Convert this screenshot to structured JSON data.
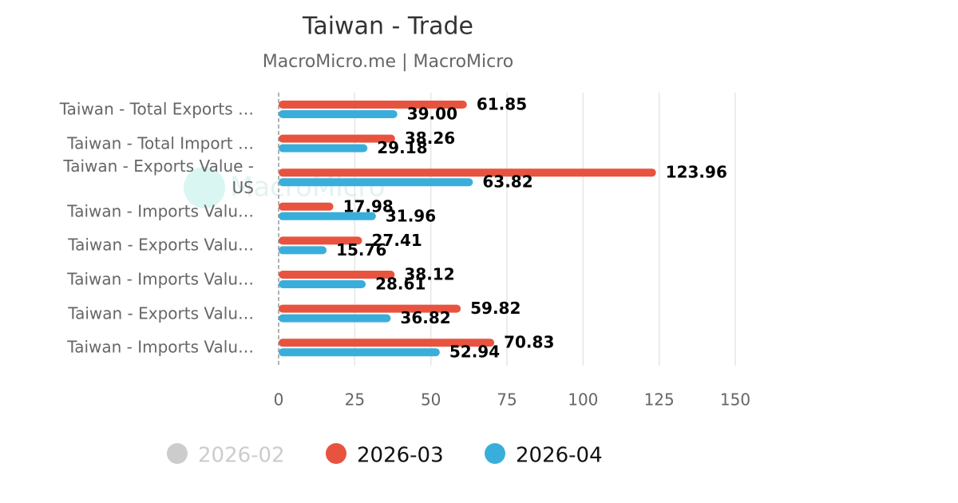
{
  "chart_data": {
    "type": "bar",
    "orientation": "horizontal",
    "title": "Taiwan - Trade",
    "subtitle": "MacroMicro.me | MacroMicro",
    "watermark": "MacroMicro",
    "categories": [
      "Taiwan - Total Exports …",
      "Taiwan - Total Import …",
      "Taiwan - Exports Value -\nUS",
      "Taiwan - Imports Valu…",
      "Taiwan - Exports Valu…",
      "Taiwan - Imports Valu…",
      "Taiwan - Exports Valu…",
      "Taiwan - Imports Valu…"
    ],
    "series": [
      {
        "name": "2026-02",
        "color": "#cccccc",
        "visible": false,
        "values": [
          null,
          null,
          null,
          null,
          null,
          null,
          null,
          null
        ]
      },
      {
        "name": "2026-03",
        "color": "#e8533f",
        "values": [
          61.85,
          38.26,
          123.96,
          17.98,
          27.41,
          38.12,
          59.82,
          70.83
        ],
        "value_labels": [
          "61.85",
          "38.26",
          "123.96",
          "17.98",
          "27.41",
          "38.12",
          "59.82",
          "70.83"
        ]
      },
      {
        "name": "2026-04",
        "color": "#3aaedb",
        "values": [
          39,
          29.18,
          63.82,
          31.96,
          15.76,
          28.61,
          36.82,
          52.94
        ],
        "value_labels": [
          "39.00",
          "29.18",
          "63.82",
          "31.96",
          "15.76",
          "28.61",
          "36.82",
          "52.94"
        ]
      }
    ],
    "xlim": [
      0,
      150
    ],
    "xticks": [
      0,
      25,
      50,
      75,
      100,
      125,
      150
    ],
    "grid": true
  }
}
